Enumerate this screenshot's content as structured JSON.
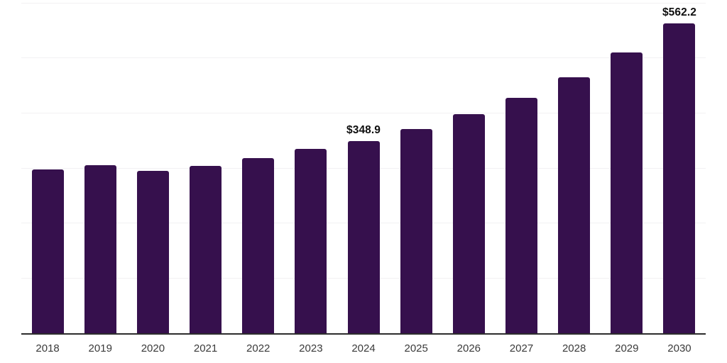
{
  "chart_data": {
    "type": "bar",
    "categories": [
      "2018",
      "2019",
      "2020",
      "2021",
      "2022",
      "2023",
      "2024",
      "2025",
      "2026",
      "2027",
      "2028",
      "2029",
      "2030"
    ],
    "values": [
      298.0,
      305.8,
      295.0,
      304.5,
      317.8,
      334.6,
      348.9,
      370.3,
      397.4,
      427.5,
      464.9,
      510.1,
      562.2
    ],
    "value_labels": {
      "2024": "$348.9",
      "2030": "$562.2"
    },
    "ylim": [
      0,
      600
    ],
    "gridline_values": [
      100,
      200,
      300,
      400,
      500,
      600
    ],
    "grid": true,
    "legend": false,
    "xlabel": "",
    "ylabel": "",
    "colors": {
      "bar": "#36104D",
      "gridline": "#f2f1f3",
      "axis_line": "#2d2d2d",
      "tick_label": "#3a3a3a",
      "value_label": "#0f0f0f",
      "background": "#ffffff"
    }
  }
}
